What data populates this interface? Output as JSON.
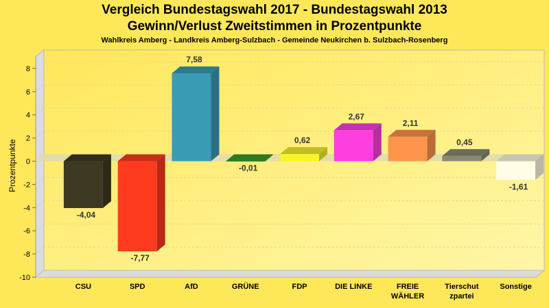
{
  "chart_data": {
    "type": "bar",
    "title": "Vergleich Bundestagswahl 2017 - Bundestagswahl 2013",
    "subtitle": "Gewinn/Verlust Zweitstimmen in Prozentpunkte",
    "subtitle2": "Wahlkreis Amberg - Landkreis Amberg-Sulzbach - Gemeinde Neukirchen b. Sulzbach-Rosenberg",
    "xlabel": "",
    "ylabel": "Prozentpunkte",
    "ylim": [
      -10,
      9
    ],
    "yticks": [
      -10,
      -8,
      -6,
      -4,
      -2,
      0,
      2,
      4,
      6,
      8
    ],
    "grid": true,
    "style": "3d",
    "categories": [
      [
        "CSU"
      ],
      [
        "SPD"
      ],
      [
        "AfD"
      ],
      [
        "GRÜNE"
      ],
      [
        "FDP"
      ],
      [
        "DIE LINKE"
      ],
      [
        "FREIE",
        "WÄHLER"
      ],
      [
        "Tierschut",
        "zpartei"
      ],
      [
        "Sonstige"
      ]
    ],
    "values": [
      -4.04,
      -7.77,
      7.58,
      -0.01,
      0.62,
      2.67,
      2.11,
      0.45,
      -1.61
    ],
    "value_labels": [
      "-4,04",
      "-7,77",
      "7,58",
      "-0,01",
      "0,62",
      "2,67",
      "2,11",
      "0,45",
      "-1,61"
    ],
    "colors": [
      "#3d3920",
      "#ff3b1f",
      "#3a9cb4",
      "#3a9a2a",
      "#f7f42a",
      "#ff3ee0",
      "#ff944c",
      "#8a8a70",
      "#fffde6"
    ]
  }
}
